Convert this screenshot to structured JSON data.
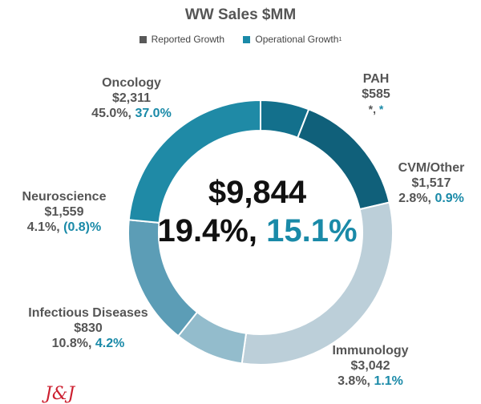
{
  "title": "WW Sales $MM",
  "legend": {
    "reported_label": "Reported Growth",
    "operational_label": "Operational Growth",
    "operational_footnote": "1"
  },
  "center": {
    "total": "$9,844",
    "reported_growth": "19.4%",
    "separator": ", ",
    "operational_growth": "15.1%"
  },
  "logo_text": "J&J",
  "colors": {
    "reported": "#595959",
    "operational": "#1a8aa8",
    "title": "#555555"
  },
  "chart_data": {
    "type": "pie",
    "donut": true,
    "title": "WW Sales $MM",
    "unit": "$MM",
    "total": 9844,
    "start_angle_deg": 0,
    "direction": "clockwise",
    "order": [
      "PAH",
      "CVM/Other",
      "Immunology",
      "Infectious Diseases",
      "Neuroscience",
      "Oncology"
    ],
    "segments": [
      {
        "name": "Oncology",
        "value": 2311,
        "value_label": "$2,311",
        "reported_growth": "45.0%",
        "operational_growth": "37.0%",
        "color": "#1f8aa6"
      },
      {
        "name": "PAH",
        "value": 585,
        "value_label": "$585",
        "reported_growth": "*",
        "operational_growth": "*",
        "color": "#13708c"
      },
      {
        "name": "CVM/Other",
        "value": 1517,
        "value_label": "$1,517",
        "reported_growth": "2.8%",
        "operational_growth": "0.9%",
        "color": "#10607a"
      },
      {
        "name": "Immunology",
        "value": 3042,
        "value_label": "$3,042",
        "reported_growth": "3.8%",
        "operational_growth": "1.1%",
        "color": "#bccfd9"
      },
      {
        "name": "Infectious Diseases",
        "value": 830,
        "value_label": "$830",
        "reported_growth": "10.8%",
        "operational_growth": "4.2%",
        "color": "#93bccc"
      },
      {
        "name": "Neuroscience",
        "value": 1559,
        "value_label": "$1,559",
        "reported_growth": "4.1%",
        "operational_growth": "(0.8)%",
        "color": "#5c9db6"
      }
    ]
  }
}
